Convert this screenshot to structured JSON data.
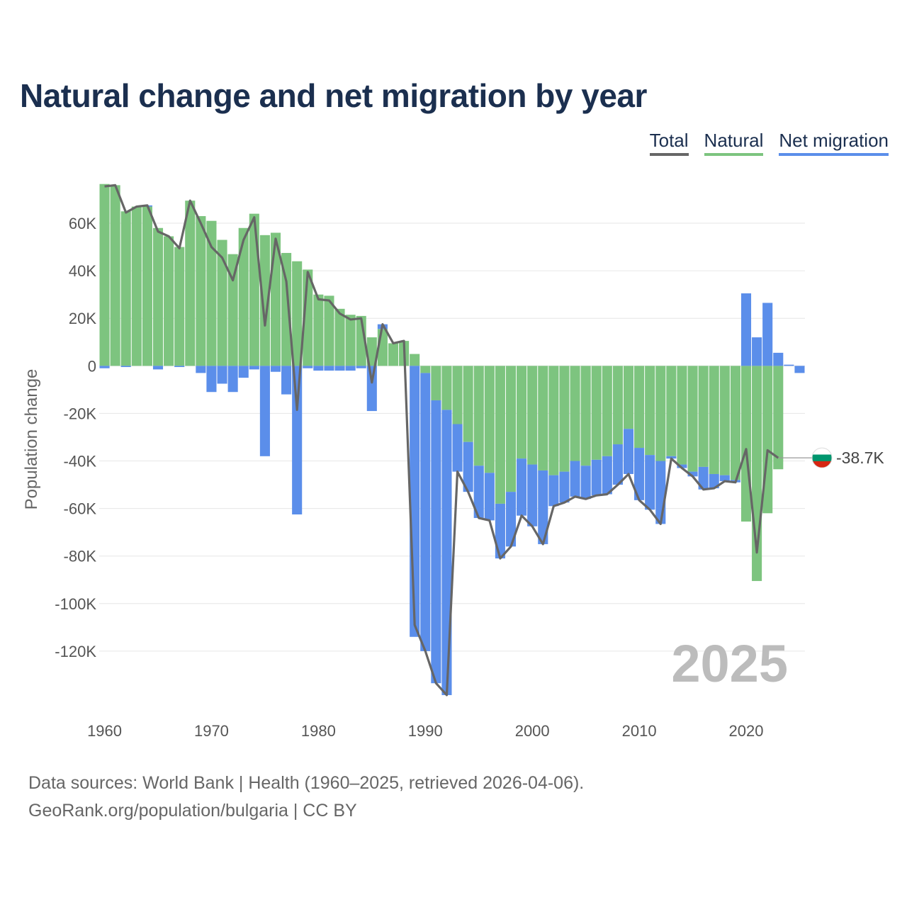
{
  "chart_data": {
    "type": "bar",
    "title": "Natural change and net migration by year",
    "ylabel": "Population change",
    "xlabel": "",
    "ylim": [
      -140000,
      77000
    ],
    "xlim": [
      1959.5,
      2025.5
    ],
    "yticks": [
      60000,
      40000,
      20000,
      0,
      -20000,
      -40000,
      -60000,
      -80000,
      -100000,
      -120000
    ],
    "ytick_labels": [
      "60K",
      "40K",
      "20K",
      "0",
      "-20K",
      "-40K",
      "-60K",
      "-80K",
      "-100K",
      "-120K"
    ],
    "xticks": [
      1960,
      1970,
      1980,
      1990,
      2000,
      2010,
      2020
    ],
    "xtick_labels": [
      "1960",
      "1970",
      "1980",
      "1990",
      "2000",
      "2010",
      "2020"
    ],
    "grid": true,
    "legend": [
      "Total",
      "Natural",
      "Net migration"
    ],
    "stacked": true,
    "years": [
      1960,
      1961,
      1962,
      1963,
      1964,
      1965,
      1966,
      1967,
      1968,
      1969,
      1970,
      1971,
      1972,
      1973,
      1974,
      1975,
      1976,
      1977,
      1978,
      1979,
      1980,
      1981,
      1982,
      1983,
      1984,
      1985,
      1986,
      1987,
      1988,
      1989,
      1990,
      1991,
      1992,
      1993,
      1994,
      1995,
      1996,
      1997,
      1998,
      1999,
      2000,
      2001,
      2002,
      2003,
      2004,
      2005,
      2006,
      2007,
      2008,
      2009,
      2010,
      2011,
      2012,
      2013,
      2014,
      2015,
      2016,
      2017,
      2018,
      2019,
      2020,
      2021,
      2022,
      2023,
      2024,
      2025
    ],
    "series": [
      {
        "name": "Natural",
        "color": "#7dc47f",
        "values": [
          76500,
          76000,
          65000,
          67000,
          67000,
          58000,
          54500,
          50000,
          69500,
          63000,
          61000,
          53000,
          47000,
          58000,
          64000,
          55000,
          56000,
          47500,
          44000,
          40500,
          30000,
          29500,
          24000,
          21500,
          21000,
          12000,
          15500,
          9500,
          10500,
          5000,
          -3000,
          -14500,
          -18500,
          -24500,
          -32000,
          -42000,
          -45000,
          -58000,
          -53000,
          -39000,
          -41500,
          -44000,
          -46000,
          -44500,
          -40000,
          -42000,
          -39500,
          -38000,
          -33000,
          -26500,
          -34500,
          -37500,
          -40000,
          -38000,
          -41500,
          -44500,
          -42500,
          -45500,
          -46000,
          -48000,
          -65500,
          -90500,
          -62000,
          -43500,
          0,
          0
        ]
      },
      {
        "name": "Net migration",
        "color": "#5b8eea",
        "values": [
          -1000,
          0,
          -500,
          0,
          500,
          -1500,
          0,
          -500,
          0,
          -3000,
          -11000,
          -7500,
          -11000,
          -5000,
          -1500,
          -38000,
          -2500,
          -12000,
          -62500,
          -1000,
          -2000,
          -2000,
          -2000,
          -2000,
          -1000,
          -19000,
          2000,
          0,
          0,
          -114000,
          -117000,
          -119000,
          -120000,
          -20000,
          -21000,
          -22000,
          -20000,
          -23000,
          -23000,
          -24000,
          -26000,
          -31000,
          -13000,
          -13000,
          -15000,
          -14000,
          -15000,
          -16000,
          -17000,
          -19000,
          -22000,
          -23000,
          -26500,
          -1000,
          -1500,
          -2000,
          -9500,
          -6000,
          -2500,
          -1000,
          30500,
          12000,
          26500,
          5500,
          500,
          -3000
        ]
      },
      {
        "name": "Total",
        "color": "#666666",
        "values": [
          75500,
          76000,
          64500,
          67000,
          67500,
          56500,
          54500,
          49500,
          69500,
          60000,
          50000,
          45500,
          36000,
          53000,
          62500,
          17000,
          53500,
          35500,
          -18500,
          39500,
          28000,
          27500,
          22000,
          19500,
          20000,
          -7000,
          17500,
          9500,
          10500,
          -109000,
          -120000,
          -133500,
          -138500,
          -44500,
          -53000,
          -64000,
          -65000,
          -81000,
          -76000,
          -63000,
          -67500,
          -75000,
          -59000,
          -57500,
          -55000,
          -56000,
          -54500,
          -54000,
          -50000,
          -45500,
          -56500,
          -60500,
          -66500,
          -39000,
          -43000,
          -46500,
          -52000,
          -51500,
          -48500,
          -49000,
          -35000,
          -78500,
          -35500,
          -38700
        ]
      }
    ],
    "end_label": "-38.7K",
    "year_watermark": "2025",
    "flag_colors": [
      "#ffffff",
      "#00966e",
      "#d62612"
    ]
  },
  "footer": {
    "line1": "Data sources: World Bank | Health (1960–2025, retrieved 2026-04-06).",
    "line2": "GeoRank.org/population/bulgaria | CC BY"
  }
}
